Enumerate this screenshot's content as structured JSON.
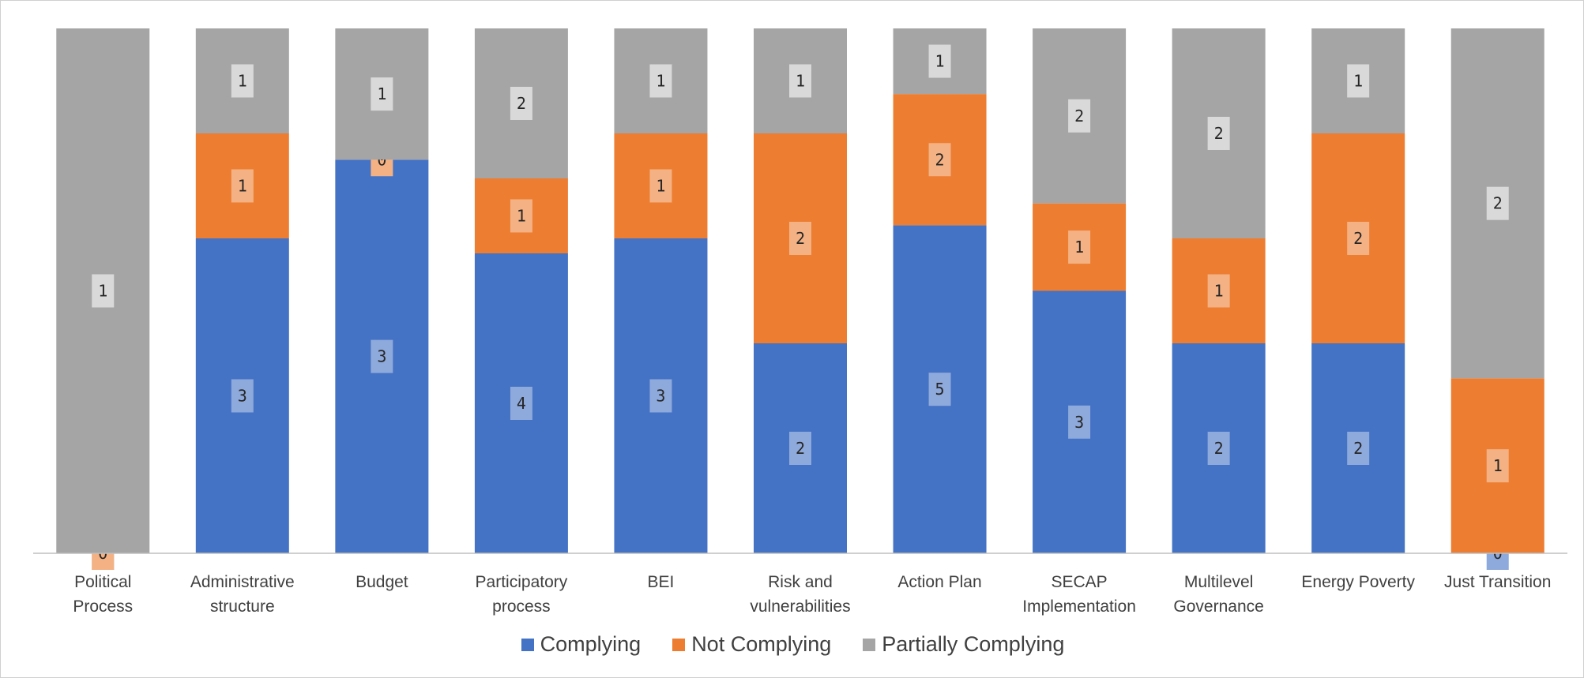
{
  "chart_data": {
    "type": "bar",
    "stacked": true,
    "title": "",
    "xlabel": "",
    "ylabel": "",
    "categories": [
      "Political Process",
      "Administrative structure",
      "Budget",
      "Participatory process",
      "BEI",
      "Risk and vulnerabilities",
      "Action Plan",
      "SECAP Implementation",
      "Multilevel Governance",
      "Energy Poverty",
      "Just Transition"
    ],
    "series": [
      {
        "name": "Complying",
        "color": "#4472C4",
        "values": [
          0,
          3,
          3,
          4,
          3,
          2,
          5,
          3,
          2,
          2,
          0
        ]
      },
      {
        "name": "Not Complying",
        "color": "#ED7D31",
        "values": [
          0,
          1,
          0,
          1,
          1,
          2,
          2,
          1,
          1,
          2,
          1
        ]
      },
      {
        "name": "Partially Complying",
        "color": "#A5A5A5",
        "values": [
          1,
          1,
          1,
          2,
          1,
          1,
          1,
          2,
          2,
          1,
          2
        ]
      }
    ],
    "ylim": [
      0,
      1
    ],
    "normalized": true,
    "grid": false,
    "legend_position": "bottom"
  }
}
